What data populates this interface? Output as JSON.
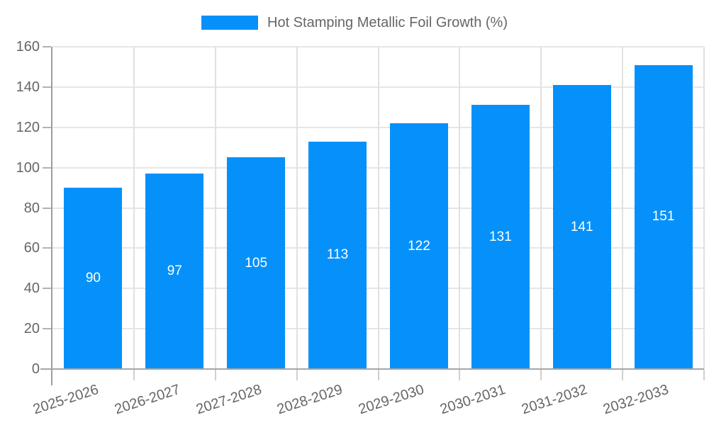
{
  "legend": {
    "label": "Hot Stamping Metallic Foil Growth (%)",
    "swatch_color": "#0691FA"
  },
  "chart_data": {
    "type": "bar",
    "title": "Hot Stamping Metallic Foil Growth (%)",
    "categories": [
      "2025-2026",
      "2026-2027",
      "2027-2028",
      "2028-2029",
      "2029-2030",
      "2030-2031",
      "2031-2032",
      "2032-2033"
    ],
    "values": [
      90,
      97,
      105,
      113,
      122,
      131,
      141,
      151
    ],
    "value_labels": [
      "90",
      "97",
      "105",
      "113",
      "122",
      "131",
      "141",
      "151"
    ],
    "xlabel": "",
    "ylabel": "",
    "ylim": [
      0,
      160
    ],
    "ytick_step": 20,
    "yticks": [
      0,
      20,
      40,
      60,
      80,
      100,
      120,
      140,
      160
    ],
    "bar_color": "#0691FA",
    "value_label_color": "#ffffff",
    "grid": true,
    "legend_position": "top",
    "x_label_rotation_deg": -18
  }
}
